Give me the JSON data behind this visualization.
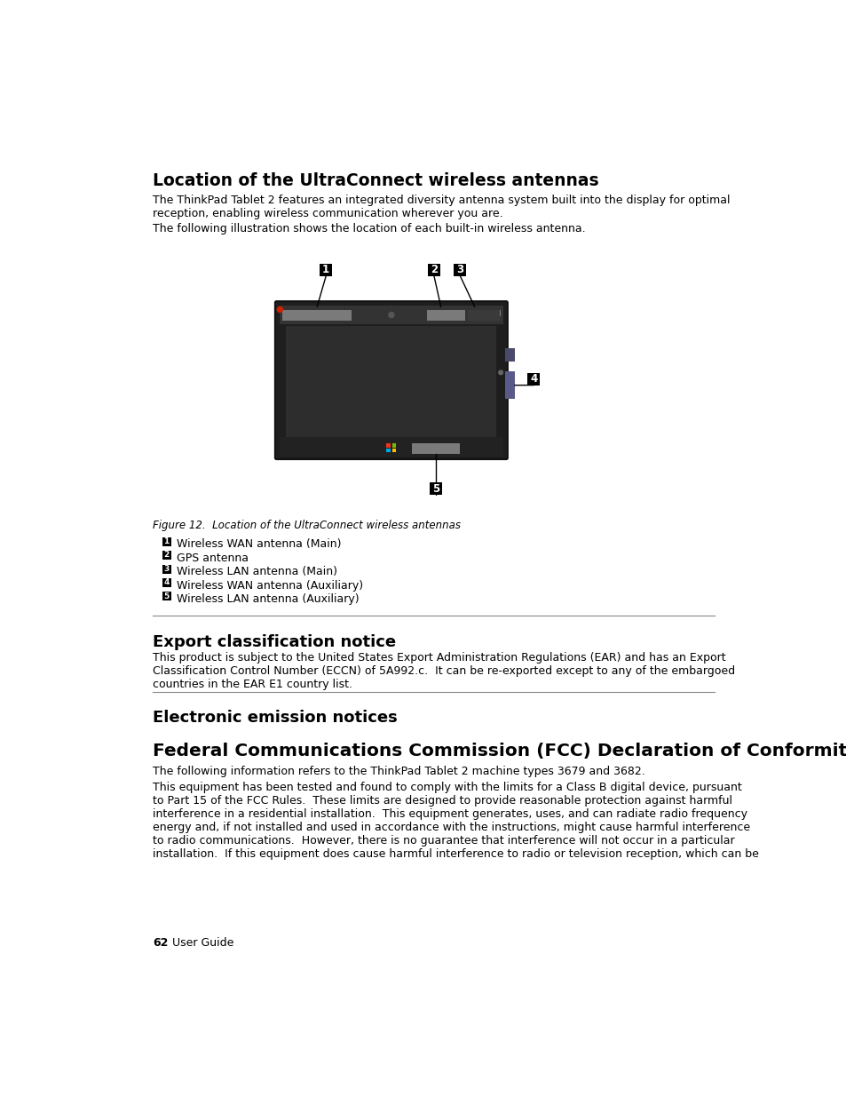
{
  "bg_color": "#ffffff",
  "title1": "Location of the UltraConnect wireless antennas",
  "para1": "The ThinkPad Tablet 2 features an integrated diversity antenna system built into the display for optimal\nreception, enabling wireless communication wherever you are.",
  "para2": "The following illustration shows the location of each built-in wireless antenna.",
  "fig_caption": "Figure 12.  Location of the UltraConnect wireless antennas",
  "legend_items": [
    {
      "num": "1",
      "text": "Wireless WAN antenna (Main)"
    },
    {
      "num": "2",
      "text": "GPS antenna"
    },
    {
      "num": "3",
      "text": "Wireless LAN antenna (Main)"
    },
    {
      "num": "4",
      "text": "Wireless WAN antenna (Auxiliary)"
    },
    {
      "num": "5",
      "text": "Wireless LAN antenna (Auxiliary)"
    }
  ],
  "section2_title": "Export classification notice",
  "section2_para": "This product is subject to the United States Export Administration Regulations (EAR) and has an Export\nClassification Control Number (ECCN) of 5A992.c.  It can be re-exported except to any of the embargoed\ncountries in the EAR E1 country list.",
  "section3_title": "Electronic emission notices",
  "section4_title": "Federal Communications Commission (FCC) Declaration of Conformity",
  "section4_para1": "The following information refers to the ThinkPad Tablet 2 machine types 3679 and 3682.",
  "section4_para2": "This equipment has been tested and found to comply with the limits for a Class B digital device, pursuant\nto Part 15 of the FCC Rules.  These limits are designed to provide reasonable protection against harmful\ninterference in a residential installation.  This equipment generates, uses, and can radiate radio frequency\nenergy and, if not installed and used in accordance with the instructions, might cause harmful interference\nto radio communications.  However, there is no guarantee that interference will not occur in a particular\ninstallation.  If this equipment does cause harmful interference to radio or television reception, which can be",
  "footer_num": "62",
  "footer_text": "User Guide",
  "text_color": "#000000",
  "body_fontsize": 9.0,
  "title1_fontsize": 13.5,
  "section_title_fontsize": 13.0,
  "fcc_title_fontsize": 14.5,
  "caption_fontsize": 8.5,
  "legend_fontsize": 9.0,
  "footer_fontsize": 9.0,
  "tablet_colors": {
    "outer": "#1e1e1e",
    "border": "#111111",
    "screen": "#2d2d2d",
    "topbar": "#333333",
    "antenna_gray": "#7a7a7a",
    "camera": "#555555",
    "thinkpad_text": "#cccccc",
    "right_dot": "#666666",
    "bottom_bar": "#222222",
    "win_colors": [
      "#ea3323",
      "#7db900",
      "#00a5e4",
      "#ffb900"
    ],
    "bottom_antenna": "#7a7a7a",
    "right_antenna": "#5a5a88",
    "right_btn": "#4a4a6a",
    "red_dot": "#cc2200"
  }
}
